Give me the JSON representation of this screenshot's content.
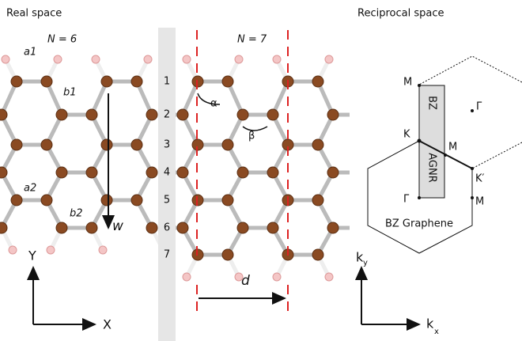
{
  "headings": {
    "real": "Real space",
    "reciprocal": "Reciprocal space"
  },
  "ribbons": {
    "n6": "N = 6",
    "n7": "N = 7"
  },
  "sites": [
    "a1",
    "b1",
    "a2",
    "b2"
  ],
  "width_label": "w",
  "rows": [
    "1",
    "2",
    "3",
    "4",
    "5",
    "6",
    "7"
  ],
  "angles": [
    "α",
    "β"
  ],
  "period": "d",
  "real_axes": {
    "y": "Y",
    "x": "X"
  },
  "reciprocal_axes": {
    "y": "y",
    "x": "x",
    "k": "k"
  },
  "points": {
    "m_top": "M",
    "gamma_top": "Γ",
    "k": "K",
    "m_mid": "M",
    "k_prime": "K′",
    "gamma_bottom": "Γ",
    "m_bottom": "M"
  },
  "zones": {
    "bz": "BZ",
    "agnr": "AGNR",
    "graphene": "BZ Graphene"
  }
}
